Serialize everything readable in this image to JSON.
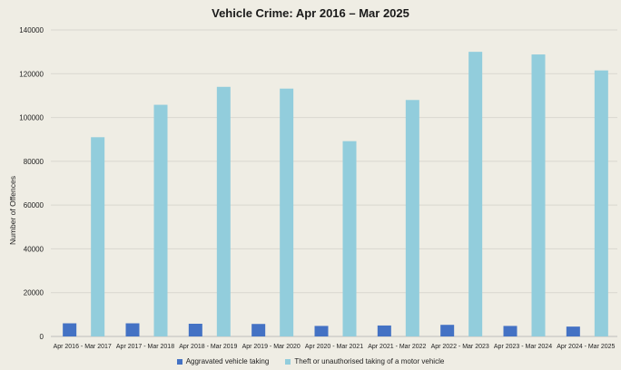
{
  "chart_data": {
    "type": "bar",
    "title": "Vehicle Crime: Apr 2016 – Mar 2025",
    "xlabel": "",
    "ylabel": "Number of Offences",
    "ylim": [
      0,
      140000
    ],
    "yticks": [
      "0",
      "20000",
      "40000",
      "60000",
      "80000",
      "100000",
      "120000",
      "140000"
    ],
    "categories": [
      "Apr 2016 - Mar 2017",
      "Apr 2017 - Mar 2018",
      "Apr 2018 - Mar 2019",
      "Apr 2019 - Mar 2020",
      "Apr 2020 - Mar 2021",
      "Apr 2021 - Mar 2022",
      "Apr 2022 - Mar 2023",
      "Apr 2023 - Mar 2024",
      "Apr 2024 - Mar 2025"
    ],
    "series": [
      {
        "name": "Aggravated vehicle taking",
        "color": "#4472c4",
        "values": [
          6000,
          6000,
          5800,
          5700,
          4800,
          5000,
          5300,
          4800,
          4500
        ]
      },
      {
        "name": "Theft or unauthorised taking of a motor vehicle",
        "color": "#92cddc",
        "values": [
          91000,
          105800,
          114000,
          113200,
          89200,
          108000,
          130000,
          128800,
          121500
        ]
      }
    ],
    "grid": true,
    "legend_position": "bottom"
  }
}
